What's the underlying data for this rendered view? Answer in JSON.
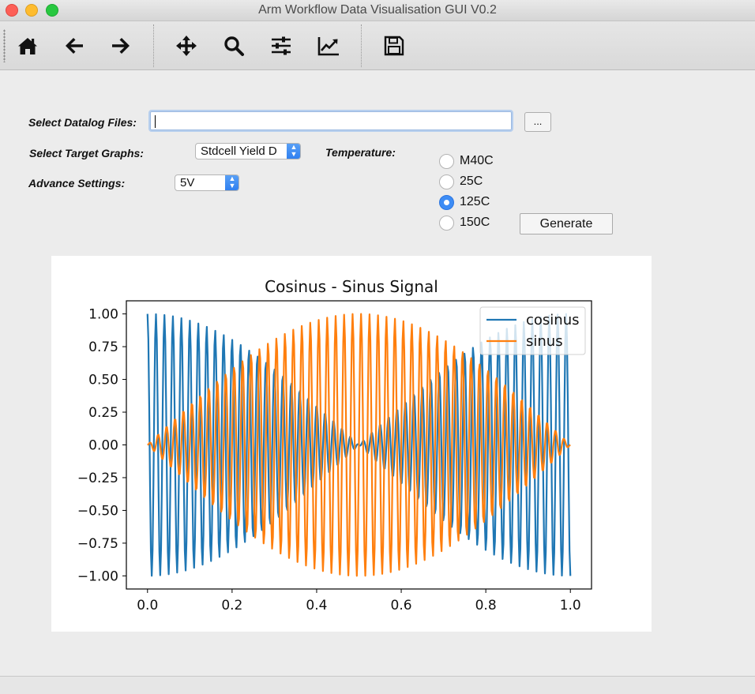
{
  "window": {
    "title": "Arm Workflow Data Visualisation GUI V0.2"
  },
  "toolbar": {
    "buttons": [
      {
        "name": "home-icon"
      },
      {
        "name": "back-arrow-icon"
      },
      {
        "name": "forward-arrow-icon"
      },
      {
        "name": "pan-icon"
      },
      {
        "name": "zoom-icon"
      },
      {
        "name": "subplot-config-icon"
      },
      {
        "name": "edit-axis-icon"
      },
      {
        "name": "save-icon"
      }
    ]
  },
  "form": {
    "datalog_label": "Select Datalog Files:",
    "datalog_value": "",
    "browse_label": "...",
    "target_graphs_label": "Select Target Graphs:",
    "target_graphs_value": "Stdcell Yield D",
    "advance_label": "Advance Settings:",
    "advance_value": "5V",
    "temperature_label": "Temperature:",
    "temperatures": [
      {
        "label": "M40C",
        "checked": false
      },
      {
        "label": "25C",
        "checked": false
      },
      {
        "label": "125C",
        "checked": true
      },
      {
        "label": "150C",
        "checked": false
      }
    ],
    "generate_label": "Generate"
  },
  "chart_data": {
    "type": "line",
    "title": "Cosinus - Sinus Signal",
    "xlabel": "",
    "ylabel": "",
    "xlim": [
      -0.05,
      1.05
    ],
    "ylim": [
      -1.1,
      1.1
    ],
    "xticks": [
      "0.0",
      "0.2",
      "0.4",
      "0.6",
      "0.8",
      "1.0"
    ],
    "yticks": [
      "1.00",
      "0.75",
      "0.50",
      "0.25",
      "0.00",
      "−0.25",
      "−0.50",
      "−0.75",
      "−1.00"
    ],
    "legend": "top-right",
    "x": [
      0,
      1
    ],
    "n_points": 500,
    "series": [
      {
        "name": "cosinus",
        "color": "#1f77b4",
        "formula": "cos(2π·50x)·cos(πx)",
        "cycles": 50
      },
      {
        "name": "sinus",
        "color": "#ff7f0e",
        "formula": "sin(2π·50x)·sin(πx)",
        "cycles": 50
      }
    ]
  }
}
